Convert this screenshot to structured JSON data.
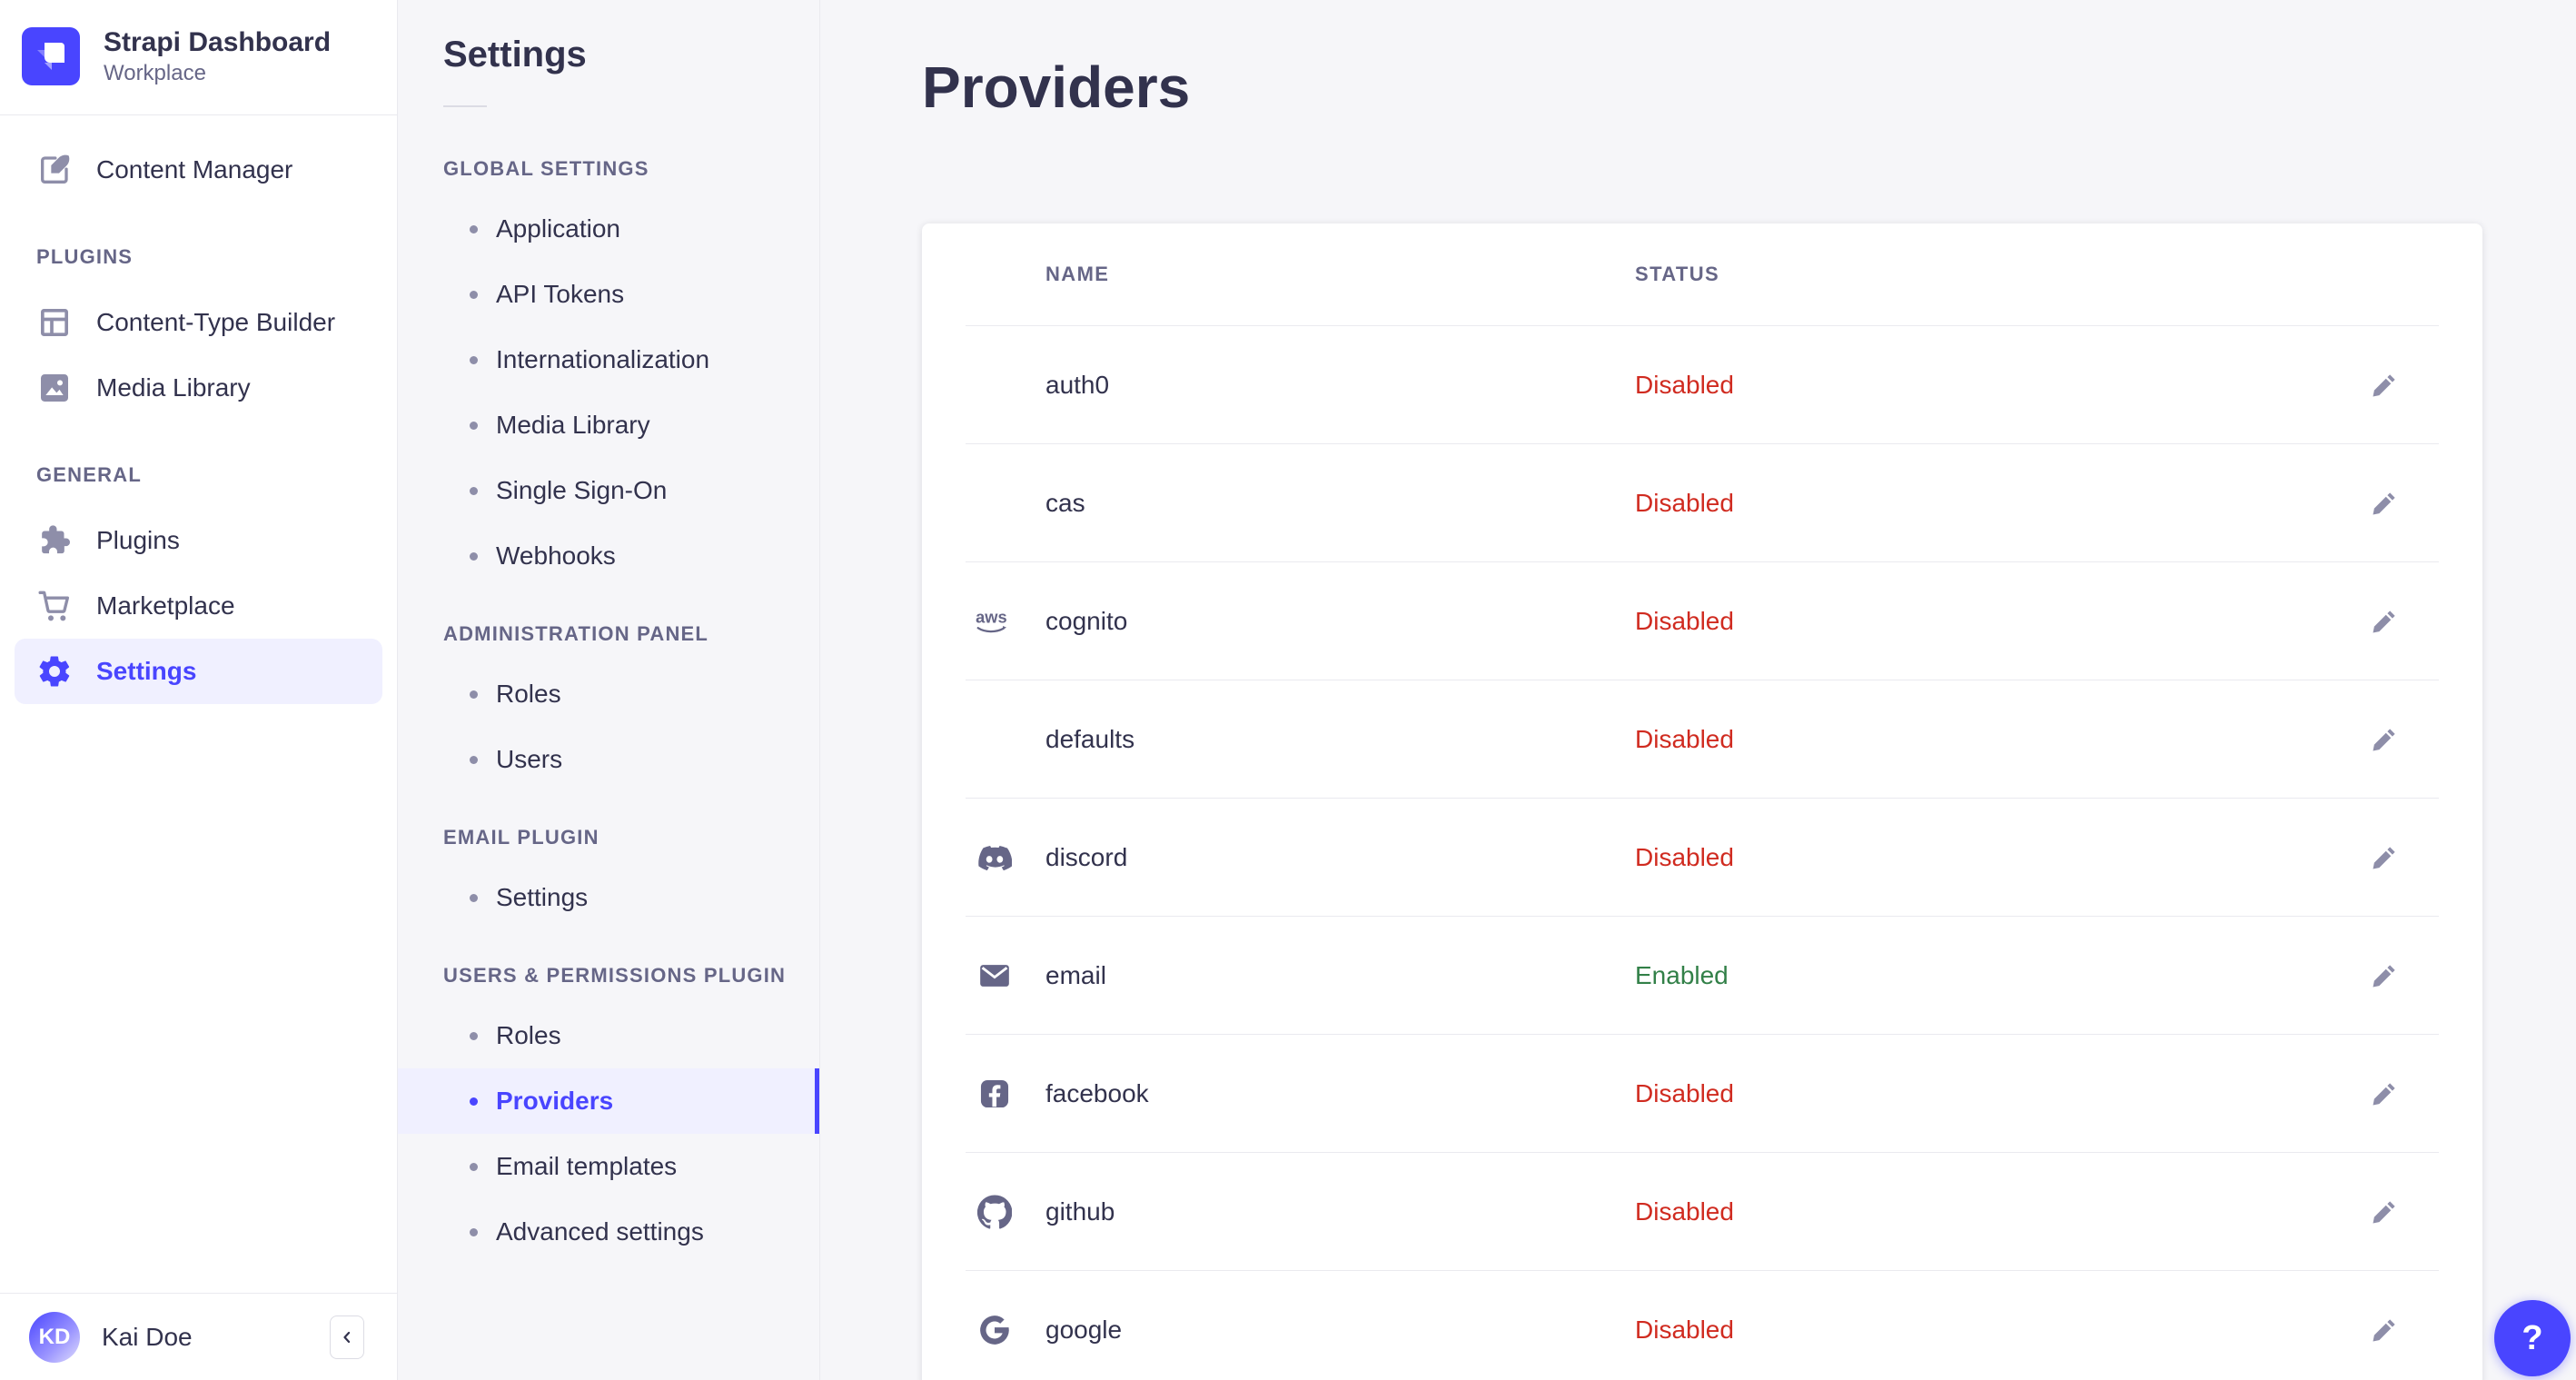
{
  "colors": {
    "primary": "#4945ff",
    "active_bg": "#f0f0ff",
    "status_disabled": "#d02b20",
    "status_enabled": "#328048",
    "icon_muted": "#8e8ea9",
    "text": "#32324d",
    "text_muted": "#666687"
  },
  "sidebar": {
    "brand": {
      "title": "Strapi Dashboard",
      "workspace": "Workplace",
      "logo_icon": "strapi-logo"
    },
    "nav": [
      {
        "type": "item",
        "label": "Content Manager",
        "icon": "write"
      },
      {
        "type": "section",
        "label": "PLUGINS"
      },
      {
        "type": "item",
        "label": "Content-Type Builder",
        "icon": "grid"
      },
      {
        "type": "item",
        "label": "Media Library",
        "icon": "image"
      },
      {
        "type": "section",
        "label": "GENERAL"
      },
      {
        "type": "item",
        "label": "Plugins",
        "icon": "puzzle"
      },
      {
        "type": "item",
        "label": "Marketplace",
        "icon": "cart"
      },
      {
        "type": "item",
        "label": "Settings",
        "icon": "gear",
        "active": true
      }
    ],
    "user": {
      "name": "Kai Doe",
      "initials": "KD"
    },
    "collapse_icon": "chevron-left"
  },
  "subnav": {
    "title": "Settings",
    "sections": [
      {
        "heading": "GLOBAL SETTINGS",
        "items": [
          {
            "label": "Application"
          },
          {
            "label": "API Tokens"
          },
          {
            "label": "Internationalization"
          },
          {
            "label": "Media Library"
          },
          {
            "label": "Single Sign-On"
          },
          {
            "label": "Webhooks"
          }
        ]
      },
      {
        "heading": "ADMINISTRATION PANEL",
        "items": [
          {
            "label": "Roles"
          },
          {
            "label": "Users"
          }
        ]
      },
      {
        "heading": "EMAIL PLUGIN",
        "items": [
          {
            "label": "Settings"
          }
        ]
      },
      {
        "heading": "USERS & PERMISSIONS PLUGIN",
        "items": [
          {
            "label": "Roles"
          },
          {
            "label": "Providers",
            "active": true
          },
          {
            "label": "Email templates"
          },
          {
            "label": "Advanced settings"
          }
        ]
      }
    ]
  },
  "main": {
    "title": "Providers",
    "table": {
      "columns": [
        "NAME",
        "STATUS"
      ],
      "rows": [
        {
          "name": "auth0",
          "icon": null,
          "status": "Disabled"
        },
        {
          "name": "cas",
          "icon": null,
          "status": "Disabled"
        },
        {
          "name": "cognito",
          "icon": "aws",
          "status": "Disabled"
        },
        {
          "name": "defaults",
          "icon": null,
          "status": "Disabled"
        },
        {
          "name": "discord",
          "icon": "discord",
          "status": "Disabled"
        },
        {
          "name": "email",
          "icon": "envelope",
          "status": "Enabled"
        },
        {
          "name": "facebook",
          "icon": "facebook",
          "status": "Disabled"
        },
        {
          "name": "github",
          "icon": "github",
          "status": "Disabled"
        },
        {
          "name": "google",
          "icon": "google",
          "status": "Disabled"
        }
      ],
      "row_action_icon": "pencil"
    }
  },
  "help": {
    "label": "?"
  }
}
